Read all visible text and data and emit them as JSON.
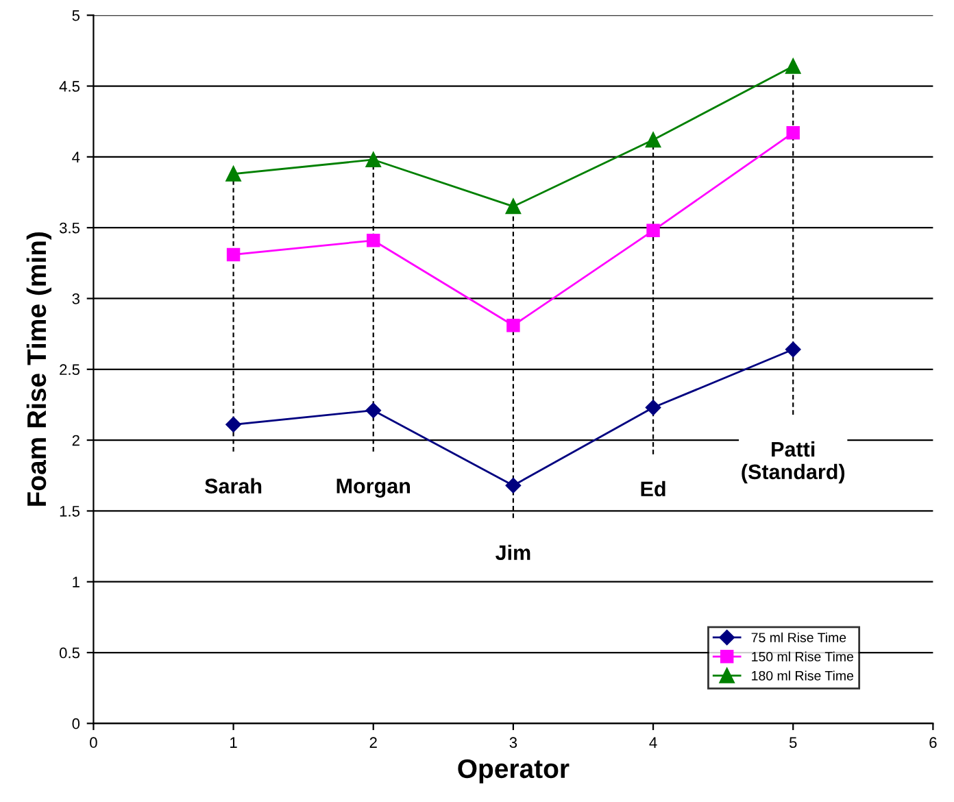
{
  "chart_data": {
    "type": "line",
    "xlabel": "Operator",
    "ylabel": "Foam Rise Time (min)",
    "x": [
      1,
      2,
      3,
      4,
      5
    ],
    "series": [
      {
        "name": "75 ml Rise Time",
        "color": "#000080",
        "marker": "diamond",
        "values": [
          2.11,
          2.21,
          1.68,
          2.23,
          2.64
        ]
      },
      {
        "name": "150 ml Rise Time",
        "color": "#ff00ff",
        "marker": "square",
        "values": [
          3.31,
          3.41,
          2.81,
          3.48,
          4.17
        ]
      },
      {
        "name": "180 ml Rise Time",
        "color": "#008000",
        "marker": "triangle",
        "values": [
          3.88,
          3.98,
          3.65,
          4.12,
          4.64
        ],
        "errors": [
          [
            1.92,
            3.88
          ],
          [
            1.92,
            3.98
          ],
          [
            1.45,
            3.65
          ],
          [
            1.9,
            4.12
          ],
          [
            2.18,
            4.64
          ]
        ]
      }
    ],
    "annotations": [
      {
        "text": "Sarah",
        "x": 1,
        "y": 1.92
      },
      {
        "text": "Morgan",
        "x": 2,
        "y": 1.92
      },
      {
        "text": "Jim",
        "x": 3,
        "y": 1.45
      },
      {
        "text": "Ed",
        "x": 4,
        "y": 1.9
      },
      {
        "text": "Patti\n(Standard)",
        "x": 5,
        "y": 2.18
      }
    ],
    "xlim": [
      0,
      6
    ],
    "xticks": [
      0,
      1,
      2,
      3,
      4,
      5,
      6
    ],
    "ylim": [
      0,
      5
    ],
    "yticks": [
      0,
      0.5,
      1,
      1.5,
      2,
      2.5,
      3,
      3.5,
      4,
      4.5,
      5
    ],
    "grid": "y",
    "legend": "bottom right",
    "line_style": "solid"
  }
}
